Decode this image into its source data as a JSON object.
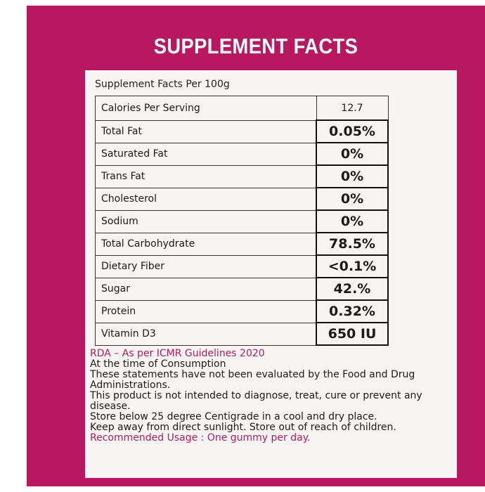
{
  "header": {
    "title": "SUPPLEMENT FACTS"
  },
  "table": {
    "caption": "Supplement Facts Per 100g",
    "rows": [
      [
        "Calories Per Serving",
        "12.7"
      ],
      [
        "Total Fat",
        "0.05%"
      ],
      [
        "Saturated Fat",
        "0%"
      ],
      [
        "Trans Fat",
        "0%"
      ],
      [
        "Cholesterol",
        "0%"
      ],
      [
        "Sodium",
        "0%"
      ],
      [
        "Total Carbohydrate",
        "78.5%"
      ],
      [
        "Dietary Fiber",
        "<0.1%"
      ],
      [
        "Sugar",
        "42.%"
      ],
      [
        "Protein",
        "0.32%"
      ],
      [
        "Vitamin D3",
        "650 IU"
      ]
    ]
  },
  "notes": [
    "RDA – As per ICMR Guidelines 2020",
    "At the time of Consumption",
    "These statements have not been evaluated by the Food and Drug Administrations.",
    "This product is not intended to diagnose, treat, cure or prevent any disease.",
    "Store below 25 degree Centigrade in a cool and dry place.",
    "Keep away from direct sunlight. Store out of reach of children.",
    "Recommended Usage : One gummy per day."
  ]
}
